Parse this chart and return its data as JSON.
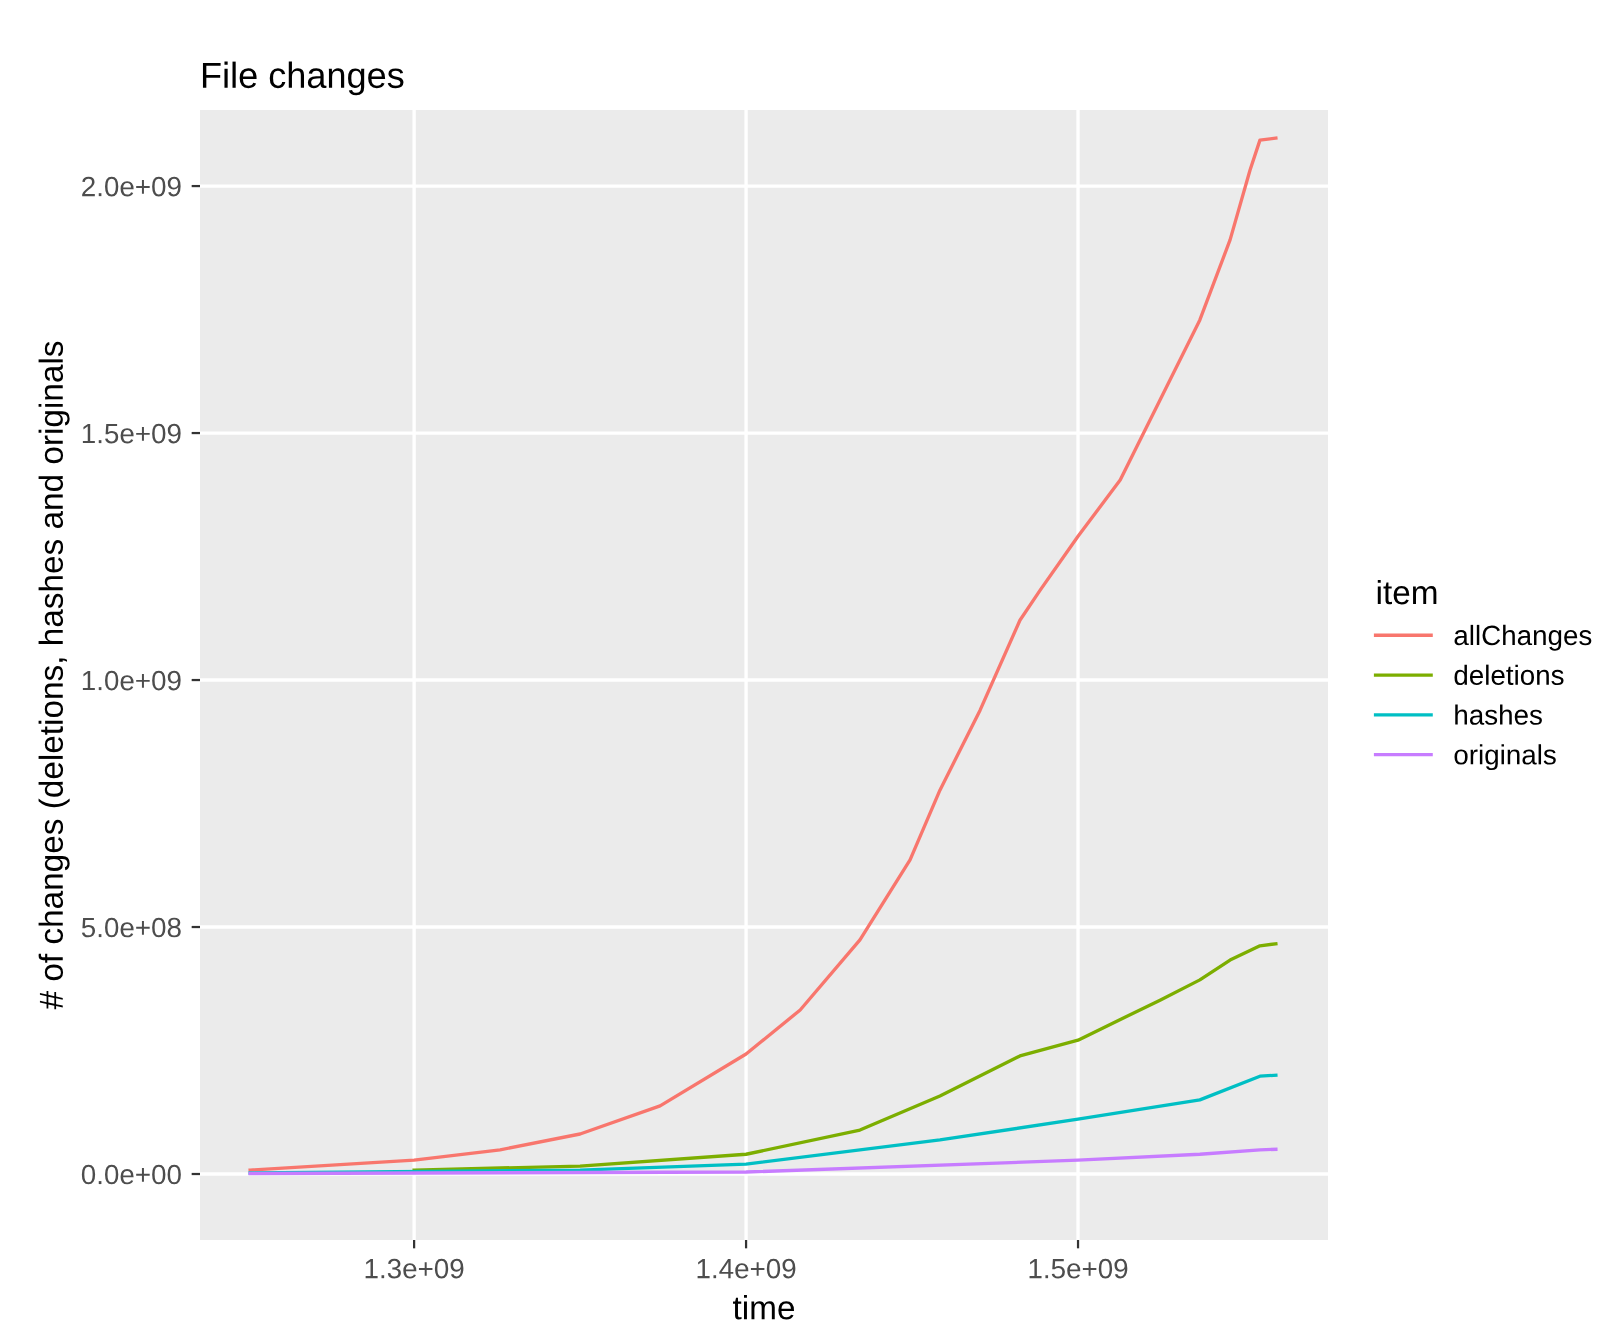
{
  "chart_data": {
    "type": "line",
    "title": "File changes",
    "xlabel": "time",
    "ylabel": "# of changes (deletions, hashes and originals",
    "legend_title": "item",
    "legend": "right",
    "grid": true,
    "xlim": [
      1235500000,
      1575300000
    ],
    "ylim": [
      -133600000,
      2154000000
    ],
    "xticks": [
      {
        "value": 1300000000,
        "label": "1.3e+09"
      },
      {
        "value": 1400000000,
        "label": "1.4e+09"
      },
      {
        "value": 1500000000,
        "label": "1.5e+09"
      }
    ],
    "yticks": [
      {
        "value": 0,
        "label": "0.0e+00"
      },
      {
        "value": 500000000,
        "label": "5.0e+08"
      },
      {
        "value": 1000000000,
        "label": "1.0e+09"
      },
      {
        "value": 1500000000,
        "label": "1.5e+09"
      },
      {
        "value": 2000000000,
        "label": "2.0e+09"
      }
    ],
    "series": [
      {
        "name": "allChanges",
        "color": "#f8766d",
        "x": [
          1250600000,
          1300000000,
          1325900000,
          1350000000,
          1374100000,
          1400000000,
          1416300000,
          1434300000,
          1449400000,
          1458400000,
          1470500000,
          1482500000,
          1488600000,
          1500000000,
          1512700000,
          1524700000,
          1536700000,
          1545800000,
          1551800000,
          1554800000,
          1559600000
        ],
        "values": [
          8000000,
          28000000,
          49000000,
          81000000,
          138000000,
          243000000,
          332000000,
          474000000,
          636000000,
          777000000,
          939000000,
          1121000000,
          1182000000,
          1291000000,
          1405000000,
          1567000000,
          1729000000,
          1891000000,
          2032000000,
          2093000000,
          2097000000
        ]
      },
      {
        "name": "deletions",
        "color": "#7cae00",
        "x": [
          1300000000,
          1350000000,
          1400000000,
          1434300000,
          1458400000,
          1482500000,
          1500000000,
          1524700000,
          1536700000,
          1545800000,
          1554800000,
          1559600000
        ],
        "values": [
          8000000,
          16000000,
          40000000,
          89000000,
          158000000,
          239000000,
          271000000,
          352000000,
          393000000,
          433000000,
          462000000,
          466000000
        ]
      },
      {
        "name": "hashes",
        "color": "#00bfc4",
        "x": [
          1250600000,
          1350000000,
          1400000000,
          1458400000,
          1500000000,
          1536700000,
          1554800000,
          1559600000
        ],
        "values": [
          2000000,
          8000000,
          20000000,
          69000000,
          111000000,
          150000000,
          198000000,
          200000000
        ]
      },
      {
        "name": "originals",
        "color": "#c77cff",
        "x": [
          1250600000,
          1400000000,
          1500000000,
          1536700000,
          1554800000,
          1559600000
        ],
        "values": [
          1000000,
          4000000,
          28000000,
          40000000,
          49000000,
          50000000
        ]
      }
    ]
  }
}
